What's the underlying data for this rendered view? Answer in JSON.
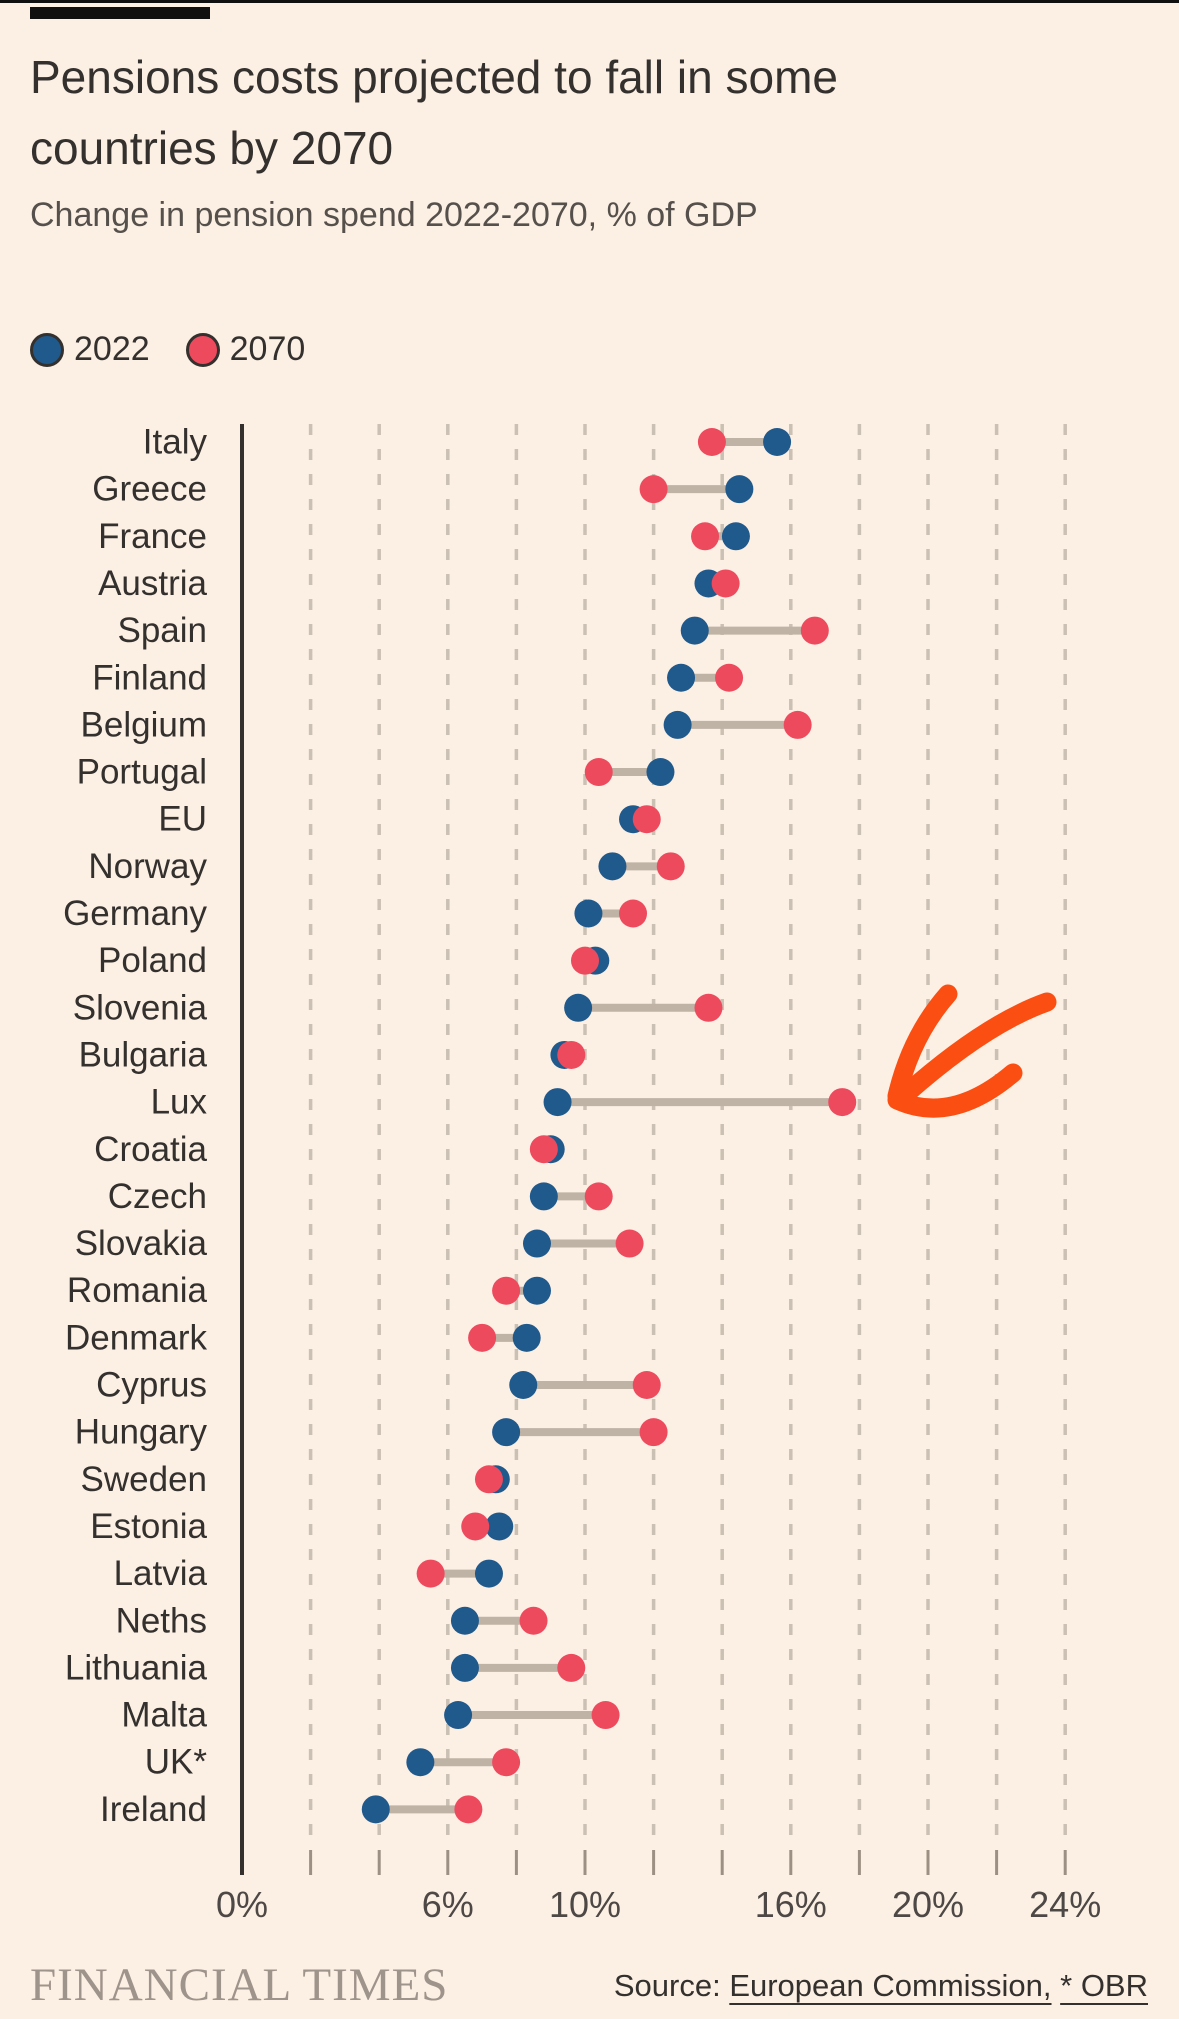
{
  "header": {
    "title_lines": [
      "Pensions costs projected to fall in some",
      "countries by 2070"
    ],
    "subtitle": "Change in pension spend 2022-2070, % of GDP"
  },
  "legend": {
    "items": [
      {
        "label": "2022",
        "color": "#20598c"
      },
      {
        "label": "2070",
        "color": "#ee4a5e"
      }
    ]
  },
  "chart_data": {
    "type": "scatter",
    "variant": "dumbbell-dot-plot",
    "title": "Pensions costs projected to fall in some countries by 2070",
    "subtitle": "Change in pension spend 2022-2070, % of GDP",
    "categories": [
      "Italy",
      "Greece",
      "France",
      "Austria",
      "Spain",
      "Finland",
      "Belgium",
      "Portugal",
      "EU",
      "Norway",
      "Germany",
      "Poland",
      "Slovenia",
      "Bulgaria",
      "Lux",
      "Croatia",
      "Czech",
      "Slovakia",
      "Romania",
      "Denmark",
      "Cyprus",
      "Hungary",
      "Sweden",
      "Estonia",
      "Latvia",
      "Neths",
      "Lithuania",
      "Malta",
      "UK*",
      "Ireland"
    ],
    "series": [
      {
        "name": "2022",
        "color": "#20598c",
        "values": [
          15.6,
          14.5,
          14.4,
          13.6,
          13.2,
          12.8,
          12.7,
          12.2,
          11.4,
          10.8,
          10.1,
          10.3,
          9.8,
          9.4,
          9.2,
          9.0,
          8.8,
          8.6,
          8.6,
          8.3,
          8.2,
          7.7,
          7.4,
          7.5,
          7.2,
          6.5,
          6.5,
          6.3,
          5.2,
          3.9
        ]
      },
      {
        "name": "2070",
        "color": "#ee4a5e",
        "values": [
          13.7,
          12.0,
          13.5,
          14.1,
          16.7,
          14.2,
          16.2,
          10.4,
          11.8,
          12.5,
          11.4,
          10.0,
          13.6,
          9.6,
          17.5,
          8.8,
          10.4,
          11.3,
          7.7,
          7.0,
          11.8,
          12.0,
          7.2,
          6.8,
          5.5,
          8.5,
          9.6,
          10.6,
          7.7,
          6.6
        ]
      }
    ],
    "xlim": [
      0,
      24
    ],
    "x_tick_step": 2,
    "x_axis_labels": [
      {
        "value": 0,
        "label": "0%"
      },
      {
        "value": 6,
        "label": "6%"
      },
      {
        "value": 10,
        "label": "10%"
      },
      {
        "value": 16,
        "label": "16%"
      },
      {
        "value": 20,
        "label": "20%"
      },
      {
        "value": 24,
        "label": "24%"
      }
    ],
    "grid": "vertical-dashed",
    "legend_position": "top-left",
    "connector_color": "#bfb3a6",
    "annotation": {
      "type": "hand-drawn-arrow",
      "points_at": "Lux 2070 dot",
      "color": "#fb4e12"
    }
  },
  "footer": {
    "brand": "FINANCIAL TIMES",
    "source_prefix": "Source:",
    "source_links": [
      {
        "label": "European Commission,"
      },
      {
        "label": "* OBR"
      }
    ]
  }
}
